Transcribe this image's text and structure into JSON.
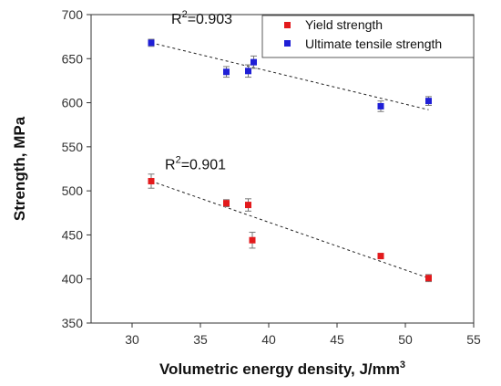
{
  "chart_data": {
    "type": "scatter",
    "title": "",
    "xlabel": "Volumetric energy density, J/mm",
    "xlabel_superscript": "3",
    "ylabel": "Strength, MPa",
    "xlim": [
      27,
      55
    ],
    "ylim": [
      350,
      700
    ],
    "xticks": [
      30,
      35,
      40,
      45,
      50,
      55
    ],
    "yticks": [
      350,
      400,
      450,
      500,
      550,
      600,
      650,
      700
    ],
    "grid": false,
    "legend_position": "top-right",
    "series": [
      {
        "name": "Yield strength",
        "color": "#e31a1c",
        "points": [
          {
            "x": 31.4,
            "y": 511,
            "err": 8
          },
          {
            "x": 36.9,
            "y": 486,
            "err": 4
          },
          {
            "x": 38.5,
            "y": 484,
            "err": 7
          },
          {
            "x": 38.8,
            "y": 444,
            "err": 9
          },
          {
            "x": 48.2,
            "y": 426,
            "err": 3
          },
          {
            "x": 51.7,
            "y": 401,
            "err": 4
          }
        ],
        "fit": {
          "x": [
            31.4,
            51.7
          ],
          "y": [
            511,
            401
          ]
        },
        "r2_label": "R",
        "r2_sup": "2",
        "r2_value": "=0.901"
      },
      {
        "name": "Ultimate tensile strength",
        "color": "#1f1fd6",
        "points": [
          {
            "x": 31.4,
            "y": 668,
            "err": 4
          },
          {
            "x": 36.9,
            "y": 635,
            "err": 6
          },
          {
            "x": 38.5,
            "y": 636,
            "err": 7
          },
          {
            "x": 38.9,
            "y": 646,
            "err": 7
          },
          {
            "x": 48.2,
            "y": 596,
            "err": 6
          },
          {
            "x": 51.7,
            "y": 602,
            "err": 5
          }
        ],
        "fit": {
          "x": [
            31.4,
            51.7
          ],
          "y": [
            668,
            592
          ]
        },
        "r2_label": "R",
        "r2_sup": "2",
        "r2_value": "=0.903"
      }
    ]
  }
}
